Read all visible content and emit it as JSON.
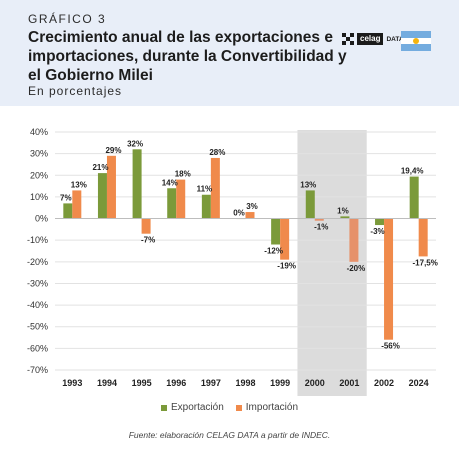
{
  "header": {
    "kicker": "GRÁFICO 3",
    "title": "Crecimiento anual de las exportaciones e importaciones, durante la Convertibilidad y el Gobierno Milei",
    "subtitle": "En porcentajes",
    "logo_text": "celag",
    "logo_suffix": "DATA",
    "flag_colors": [
      "#74acdf",
      "#ffffff",
      "#74acdf"
    ]
  },
  "colors": {
    "header_bg": "#e8eef8",
    "exportacion": "#7b9a3a",
    "importacion": "#f08a4b",
    "importacion_highlight": "#e6916a",
    "shade": "#dcdcdc",
    "grid": "#e2e2e2"
  },
  "chart_data": {
    "type": "bar",
    "categories": [
      "1993",
      "1994",
      "1995",
      "1996",
      "1997",
      "1998",
      "1999",
      "2000",
      "2001",
      "2002",
      "2024"
    ],
    "series": [
      {
        "name": "Exportación",
        "values": [
          7,
          21,
          32,
          null,
          11,
          null,
          -12,
          13,
          1,
          -3,
          19.4
        ],
        "labels": [
          "7%",
          "21%",
          "32%",
          "14%",
          "11%",
          "0%",
          "-12%",
          "13%",
          "1%",
          "-3%",
          "19,4%"
        ],
        "bar_values": [
          7,
          21,
          32,
          14,
          11,
          0,
          -12,
          13,
          1,
          -3,
          19.4
        ]
      },
      {
        "name": "Importación",
        "values": [
          13,
          29,
          -7,
          18,
          28,
          3,
          -19,
          -1,
          -20,
          -56,
          -17.5
        ],
        "labels": [
          "13%",
          "29%",
          "-7%",
          "18%",
          "28%",
          "3%",
          "-19%",
          "-1%",
          "-20%",
          "-56%",
          "-17,5%"
        ]
      }
    ],
    "y_ticks": [
      "40%",
      "30%",
      "20%",
      "10%",
      "0%",
      "-10%",
      "-20%",
      "-30%",
      "-40%",
      "-50%",
      "-60%",
      "-70%"
    ],
    "ylim": [
      -70,
      40
    ],
    "shaded_categories": [
      "2000",
      "2001"
    ],
    "grid": true,
    "legend_position": "bottom"
  },
  "legend": {
    "items": [
      "Exportación",
      "Importación"
    ]
  },
  "source": "Fuente: elaboración CELAG DATA a partir de INDEC."
}
